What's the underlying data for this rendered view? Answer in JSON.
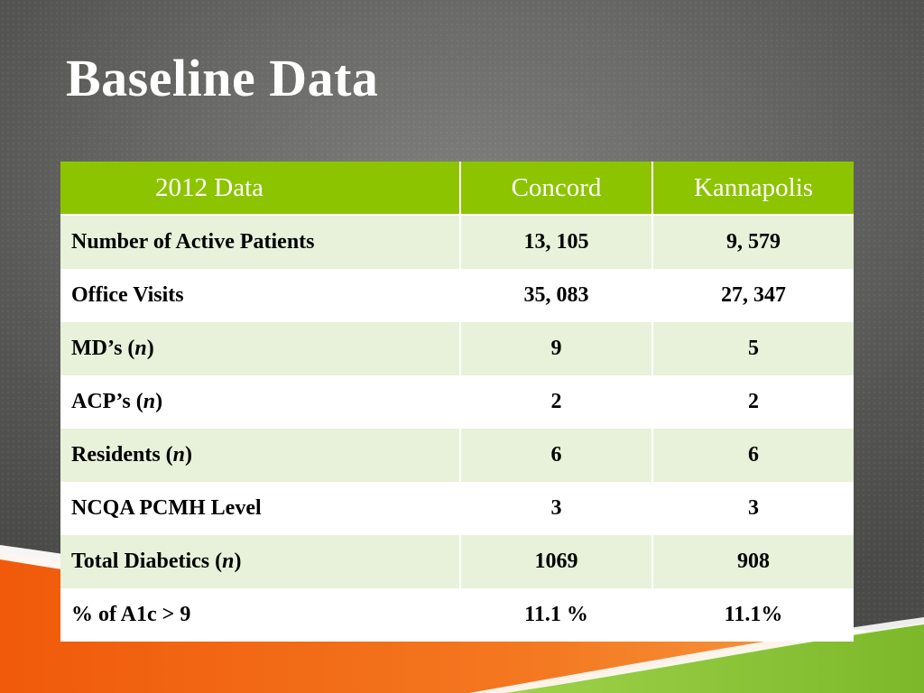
{
  "slide": {
    "title": "Baseline Data"
  },
  "table": {
    "headers": [
      "2012 Data",
      "Concord",
      "Kannapolis"
    ],
    "rows": [
      {
        "label": "Number of Active Patients",
        "concord": "13, 105",
        "kannapolis": "9, 579"
      },
      {
        "label": "Office Visits",
        "concord": "35, 083",
        "kannapolis": "27, 347"
      },
      {
        "label": "MD’s (",
        "label_italic": "n",
        "label_close": ")",
        "concord": "9",
        "kannapolis": "5"
      },
      {
        "label": "ACP’s (",
        "label_italic": "n",
        "label_close": ")",
        "concord": "2",
        "kannapolis": "2"
      },
      {
        "label": "Residents (",
        "label_italic": "n",
        "label_close": ")",
        "concord": "6",
        "kannapolis": "6"
      },
      {
        "label": "NCQA PCMH Level",
        "concord": "3",
        "kannapolis": "3"
      },
      {
        "label": "Total Diabetics (",
        "label_italic": "n",
        "label_close": ")",
        "concord": "1069",
        "kannapolis": "908"
      },
      {
        "label": "% of A1c > 9",
        "concord": "11.1 %",
        "kannapolis": "11.1%"
      }
    ]
  },
  "colors": {
    "header_green": "#8dc400",
    "row_tint": "#e8f1da",
    "accent_orange": "#f26a10",
    "accent_green": "#8cc63f"
  }
}
